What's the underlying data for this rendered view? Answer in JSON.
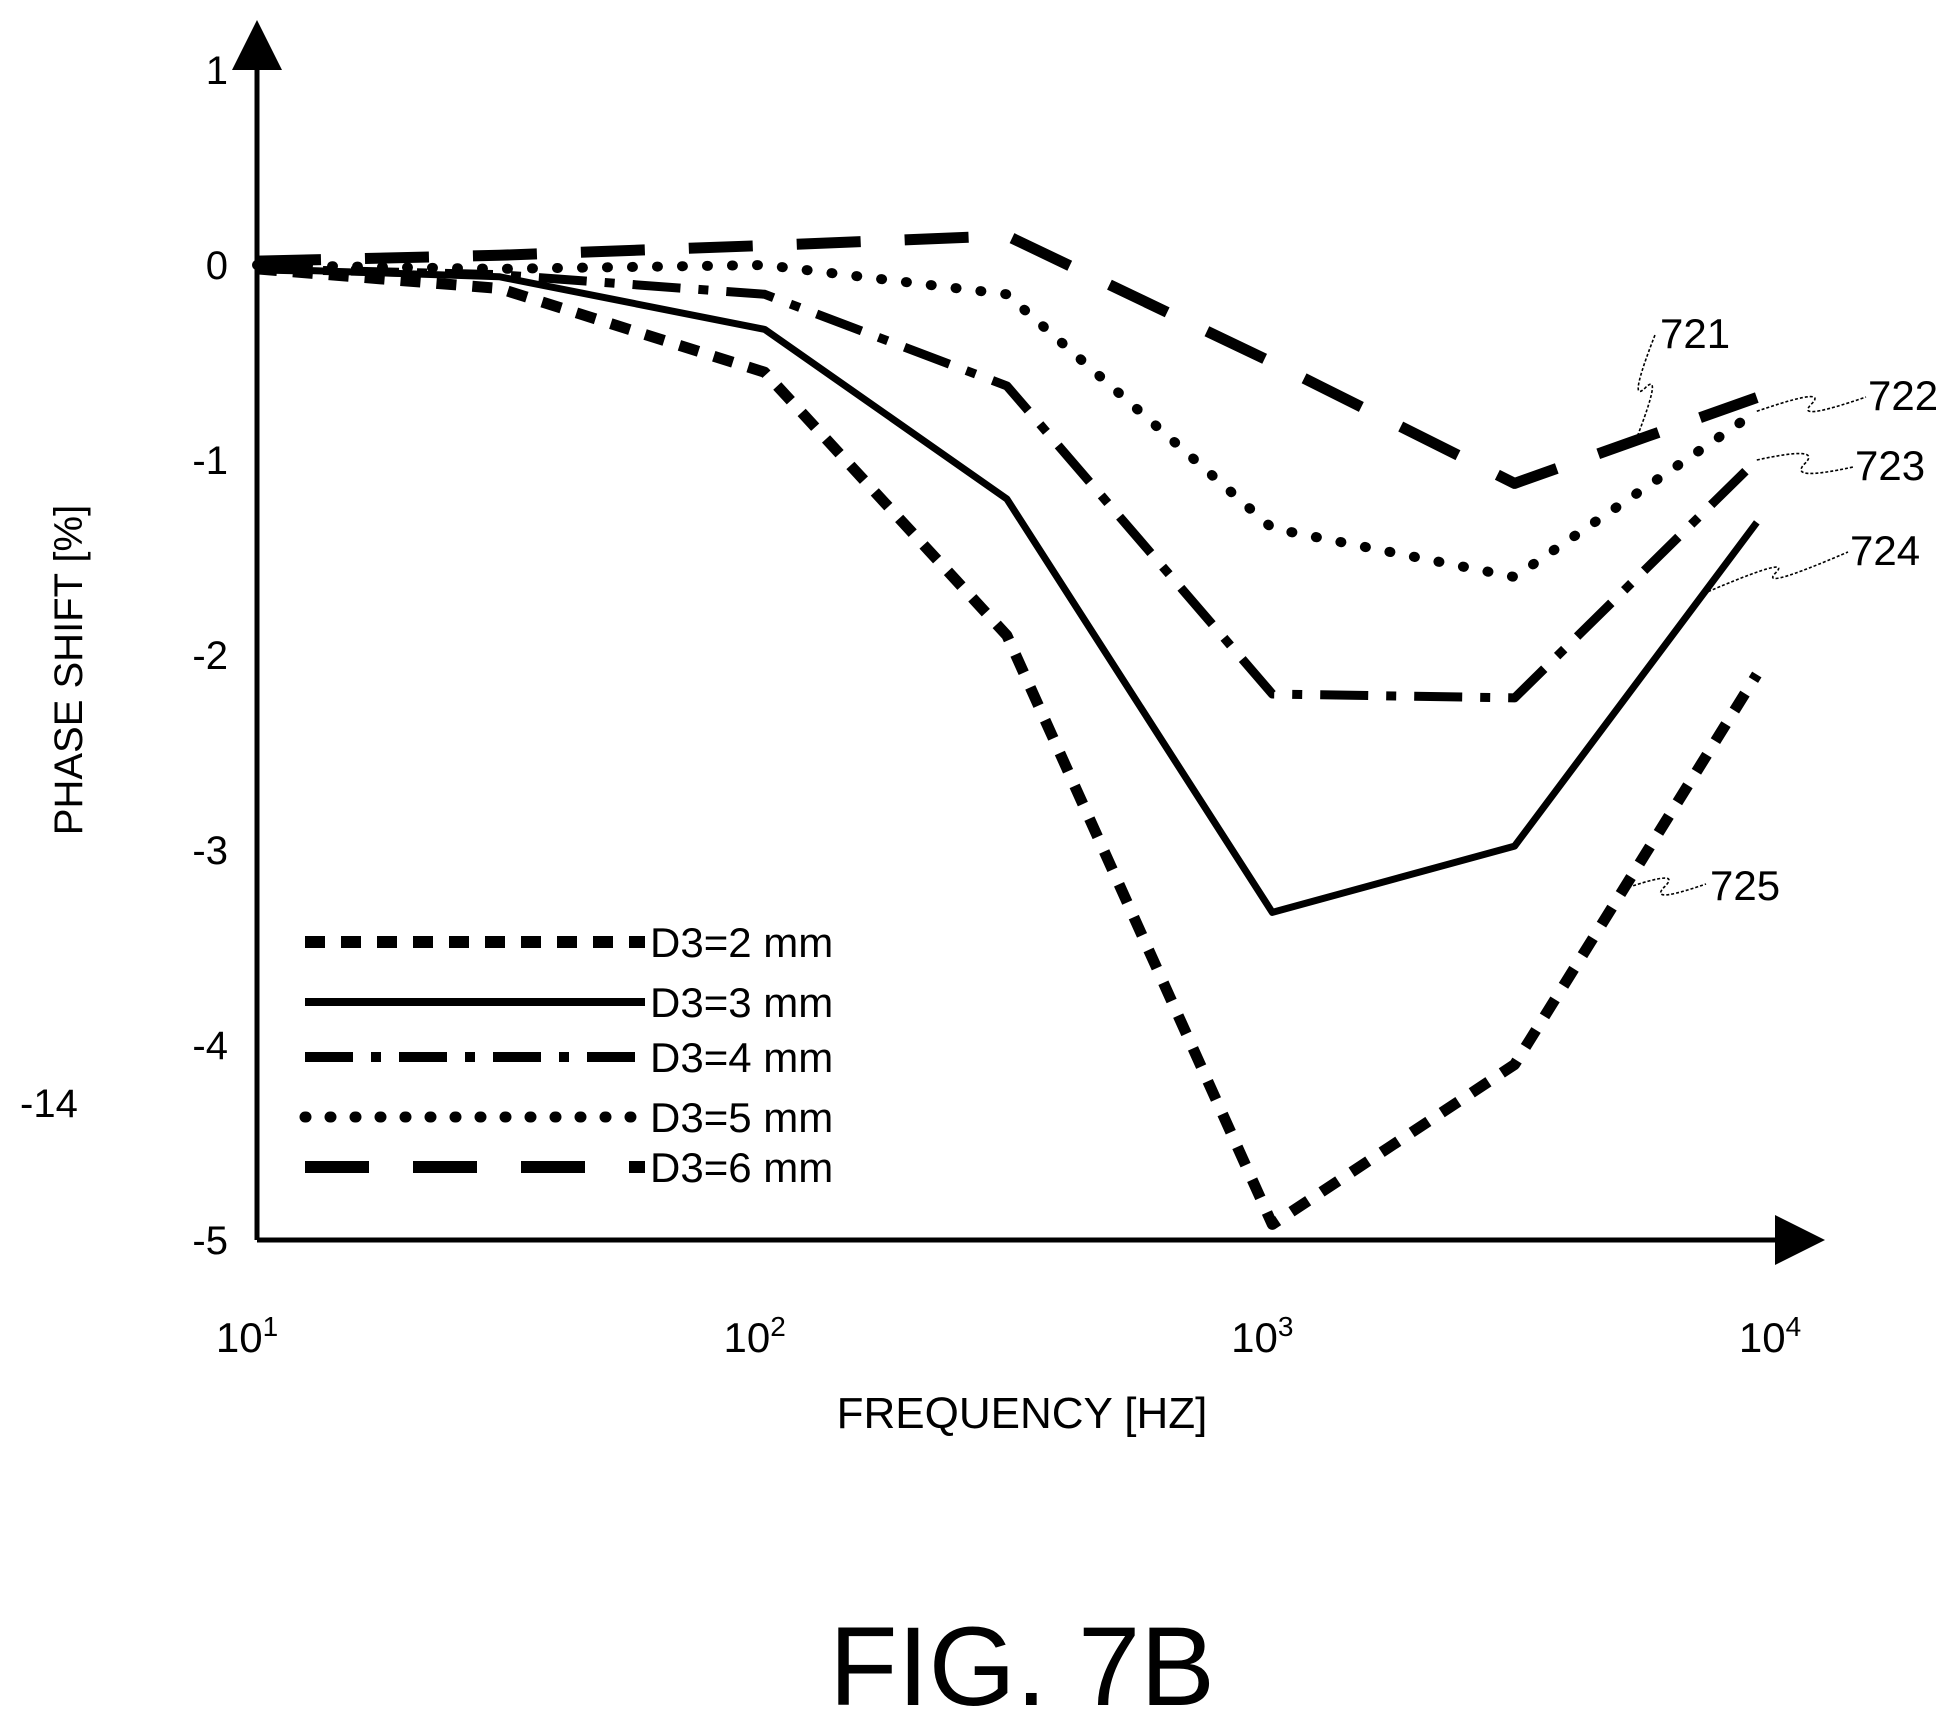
{
  "figure_label": "FIG. 7B",
  "stray_label": "-14",
  "chart_data": {
    "type": "line",
    "xlabel": "FREQUENCY [HZ]",
    "ylabel": "PHASE SHIFT [%]",
    "xscale": "log",
    "xlim": [
      10,
      10000
    ],
    "ylim": [
      -5,
      1
    ],
    "grid": false,
    "legend_position": "bottom-left",
    "x_ticks": [
      {
        "value": 10,
        "base": "10",
        "exp": "1"
      },
      {
        "value": 100,
        "base": "10",
        "exp": "2"
      },
      {
        "value": 1000,
        "base": "10",
        "exp": "3"
      },
      {
        "value": 10000,
        "base": "10",
        "exp": "4"
      }
    ],
    "y_ticks": [
      {
        "value": 1,
        "label": "1"
      },
      {
        "value": 0,
        "label": "0"
      },
      {
        "value": -1,
        "label": "-1"
      },
      {
        "value": -2,
        "label": "-2"
      },
      {
        "value": -3,
        "label": "-3"
      },
      {
        "value": -4,
        "label": "-4"
      },
      {
        "value": -5,
        "label": "-5"
      }
    ],
    "series": [
      {
        "name": "D3=2 mm",
        "style": "dotted-dash",
        "ref": "725",
        "x": [
          10,
          30,
          100,
          300,
          1000,
          3000,
          9000
        ],
        "y": [
          -0.02,
          -0.12,
          -0.55,
          -1.9,
          -4.92,
          -4.1,
          -2.1
        ]
      },
      {
        "name": "D3=3 mm",
        "style": "solid",
        "ref": "724",
        "x": [
          10,
          30,
          100,
          300,
          1000,
          3000,
          9000
        ],
        "y": [
          -0.02,
          -0.06,
          -0.33,
          -1.2,
          -3.32,
          -2.98,
          -1.32
        ]
      },
      {
        "name": "D3=4 mm",
        "style": "dash-dot",
        "ref": "723",
        "x": [
          10,
          30,
          100,
          300,
          1000,
          3000,
          9000
        ],
        "y": [
          -0.02,
          -0.05,
          -0.15,
          -0.62,
          -2.2,
          -2.22,
          -1.0
        ]
      },
      {
        "name": "D3=5 mm",
        "style": "dot",
        "ref": "722",
        "x": [
          10,
          30,
          100,
          300,
          1000,
          3000,
          9000
        ],
        "y": [
          0.0,
          -0.02,
          0.0,
          -0.15,
          -1.35,
          -1.6,
          -0.75
        ]
      },
      {
        "name": "D3=6 mm",
        "style": "long-dash",
        "ref": "721",
        "x": [
          10,
          30,
          100,
          300,
          1000,
          3000,
          9000
        ],
        "y": [
          0.02,
          0.05,
          0.1,
          0.15,
          -0.5,
          -1.12,
          -0.68
        ]
      }
    ],
    "annotations": [
      "721",
      "722",
      "723",
      "724",
      "725"
    ]
  },
  "style": {
    "ink": "#000000",
    "background": "#ffffff"
  }
}
